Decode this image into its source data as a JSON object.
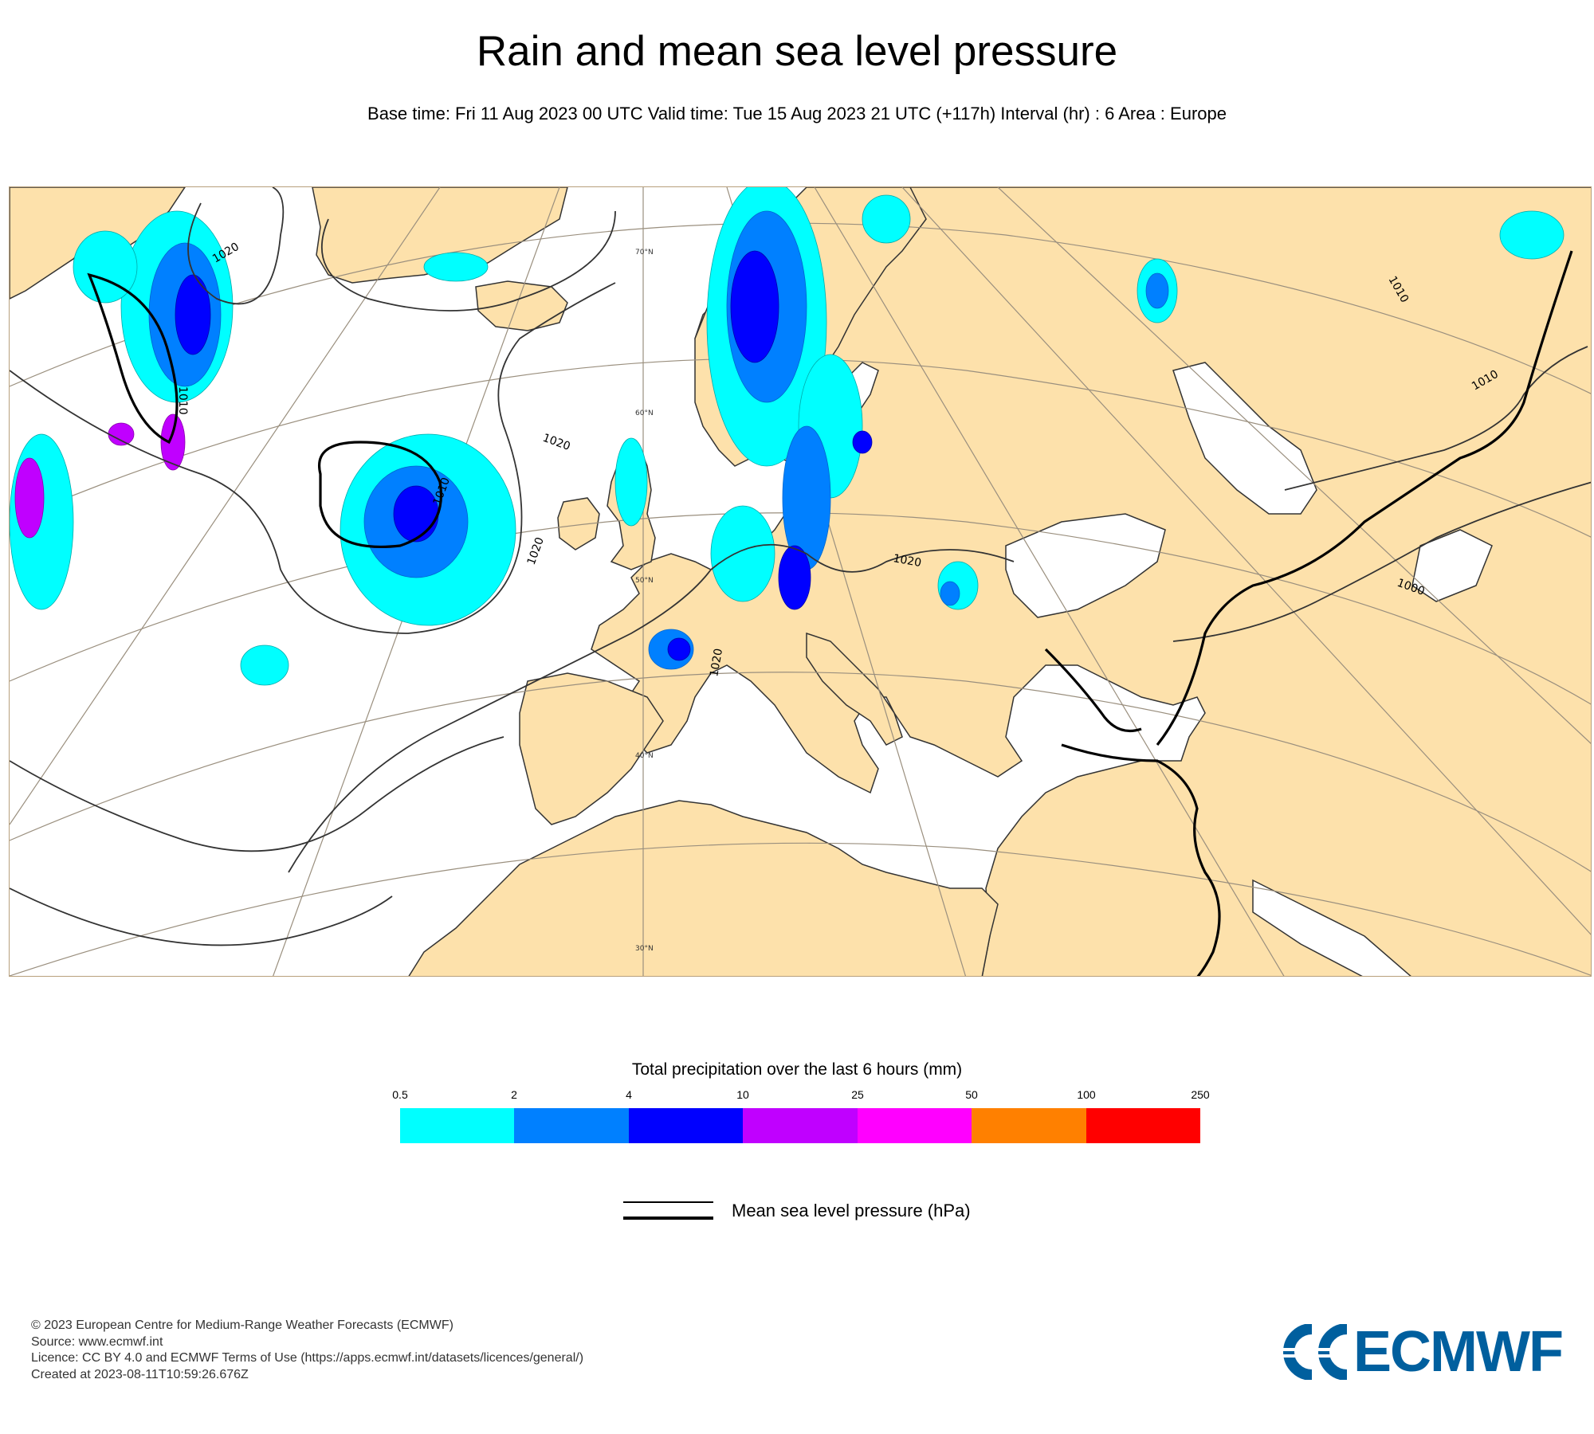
{
  "header": {
    "title": "Rain and mean sea level pressure",
    "subtitle": "Base time: Fri 11 Aug 2023 00 UTC Valid time: Tue 15 Aug 2023 21 UTC (+117h) Interval (hr) : 6 Area : Europe"
  },
  "map": {
    "land_color": "#fde1ab",
    "sea_color": "#ffffff",
    "graticule_color": "#9a8f7e",
    "latitude_labels": [
      "70°N",
      "60°N",
      "50°N",
      "40°N",
      "30°N"
    ],
    "isobar_labels": [
      "1020",
      "1010",
      "1020",
      "1010",
      "1020",
      "1020",
      "1020",
      "1010",
      "1010",
      "1000"
    ]
  },
  "legend": {
    "title": "Total precipitation over the last 6 hours (mm)",
    "ticks": [
      "0.5",
      "2",
      "4",
      "10",
      "25",
      "50",
      "100",
      "250"
    ],
    "colors": [
      "#00ffff",
      "#0080ff",
      "#0000ff",
      "#c000ff",
      "#ff00ff",
      "#ff8000",
      "#ff0000"
    ],
    "pressure_label": "Mean sea level pressure (hPa)"
  },
  "footer": {
    "lines": [
      "© 2023 European Centre for Medium-Range Weather Forecasts (ECMWF)",
      "Source: www.ecmwf.int",
      "Licence: CC BY 4.0 and ECMWF Terms of Use (https://apps.ecmwf.int/datasets/licences/general/)",
      "Created at 2023-08-11T10:59:26.676Z"
    ],
    "logo_text": "ECMWF",
    "logo_color": "#005f9e"
  }
}
